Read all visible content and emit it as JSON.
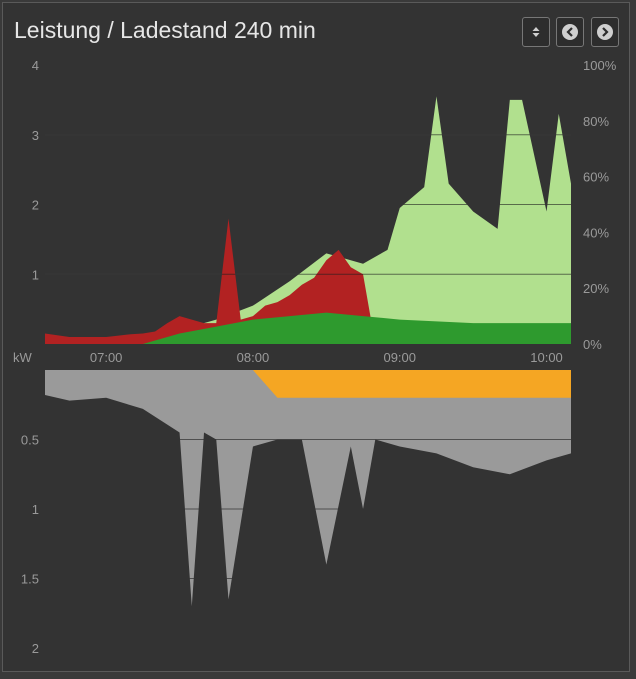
{
  "title": "Leistung / Ladestand 240 min",
  "toolbar": {
    "buttons": [
      {
        "icon": "sort-icon"
      },
      {
        "icon": "chevron-left-icon"
      },
      {
        "icon": "chevron-right-icon"
      }
    ]
  },
  "colors": {
    "background": "#333333",
    "grid": "#1e1e1e",
    "grid_light": "#555555",
    "grid_dark": "#1e1e1e",
    "consumption_from_grid": "#b22222",
    "pv_self_use": "#2e9a2e",
    "pv_generation": "#b1e08e",
    "battery_soc_line": "#3a3a3a",
    "export": "#f5a623",
    "battery_charge": "#ffd39b",
    "house_load": "#9a9a9a"
  },
  "chart_data": {
    "type": "area",
    "upper_panel": {
      "y_unit_left": "kW",
      "y_ticks_left": [
        "4",
        "3",
        "2",
        "1"
      ],
      "y_ticks_right": [
        "100%",
        "80%",
        "60%",
        "40%",
        "20%",
        "0%"
      ],
      "ylim_left": [
        0,
        4
      ],
      "ylim_right": [
        0,
        100
      ],
      "series": [
        {
          "name": "",
          "color": "#b22222",
          "x": [
            "06:35",
            "06:45",
            "07:00",
            "07:05",
            "07:10",
            "07:15",
            "07:20",
            "07:25",
            "07:30",
            "07:35",
            "07:40",
            "07:45",
            "07:50",
            "07:55",
            "08:00",
            "08:05",
            "08:10",
            "08:15",
            "08:20",
            "08:25",
            "08:30",
            "08:35",
            "08:40",
            "08:45",
            "08:50",
            "08:55",
            "09:00"
          ],
          "y": [
            0.15,
            0.1,
            0.1,
            0.12,
            0.14,
            0.15,
            0.18,
            0.3,
            0.4,
            0.35,
            0.3,
            0.3,
            1.8,
            0.35,
            0.4,
            0.55,
            0.6,
            0.7,
            0.85,
            0.95,
            1.2,
            1.35,
            1.1,
            1.0,
            0.0,
            0.0,
            0.0
          ]
        },
        {
          "name": "",
          "color": "#b1e08e",
          "x": [
            "07:15",
            "07:30",
            "07:45",
            "08:00",
            "08:15",
            "08:30",
            "08:45",
            "08:55",
            "09:00",
            "09:10",
            "09:15",
            "09:20",
            "09:30",
            "09:40",
            "09:45",
            "09:50",
            "10:00",
            "10:05",
            "10:10"
          ],
          "y": [
            0.0,
            0.2,
            0.35,
            0.55,
            0.9,
            1.3,
            1.15,
            1.35,
            1.95,
            2.25,
            3.55,
            2.3,
            1.9,
            1.65,
            3.5,
            3.5,
            1.9,
            3.3,
            2.3
          ]
        },
        {
          "name": "",
          "color": "#2e9a2e",
          "x": [
            "07:15",
            "07:30",
            "07:45",
            "08:00",
            "08:15",
            "08:30",
            "08:45",
            "09:00",
            "09:30",
            "10:00",
            "10:10"
          ],
          "y": [
            0.0,
            0.15,
            0.25,
            0.35,
            0.4,
            0.45,
            0.4,
            0.35,
            0.3,
            0.3,
            0.3
          ]
        }
      ]
    },
    "lower_panel": {
      "y_ticks": [
        "0.5",
        "1",
        "1.5",
        "2"
      ],
      "ylim": [
        0,
        2
      ],
      "series": [
        {
          "name": "",
          "color": "#9a9a9a",
          "x": [
            "06:35",
            "06:45",
            "07:00",
            "07:15",
            "07:30",
            "07:35",
            "07:40",
            "07:45",
            "07:50",
            "08:00",
            "08:10",
            "08:20",
            "08:30",
            "08:40",
            "08:45",
            "08:50",
            "09:00",
            "09:15",
            "09:30",
            "09:45",
            "10:00",
            "10:10"
          ],
          "y": [
            0.18,
            0.22,
            0.2,
            0.28,
            0.45,
            1.7,
            0.45,
            0.5,
            1.65,
            0.55,
            0.5,
            0.5,
            1.4,
            0.55,
            1.0,
            0.5,
            0.55,
            0.6,
            0.7,
            0.75,
            0.65,
            0.6
          ]
        },
        {
          "name": "",
          "color": "#f5a623",
          "x": [
            "08:00",
            "08:10",
            "08:20",
            "08:30",
            "08:40",
            "08:50",
            "09:00",
            "09:15",
            "09:30",
            "09:45",
            "10:00",
            "10:10"
          ],
          "y": [
            0.0,
            0.2,
            0.2,
            0.2,
            0.2,
            0.2,
            0.2,
            0.2,
            0.2,
            0.2,
            0.2,
            0.2
          ]
        }
      ]
    },
    "x_ticks": [
      "07:00",
      "08:00",
      "09:00",
      "10:00"
    ],
    "x_range": [
      "06:35",
      "10:10"
    ],
    "grid": true
  }
}
